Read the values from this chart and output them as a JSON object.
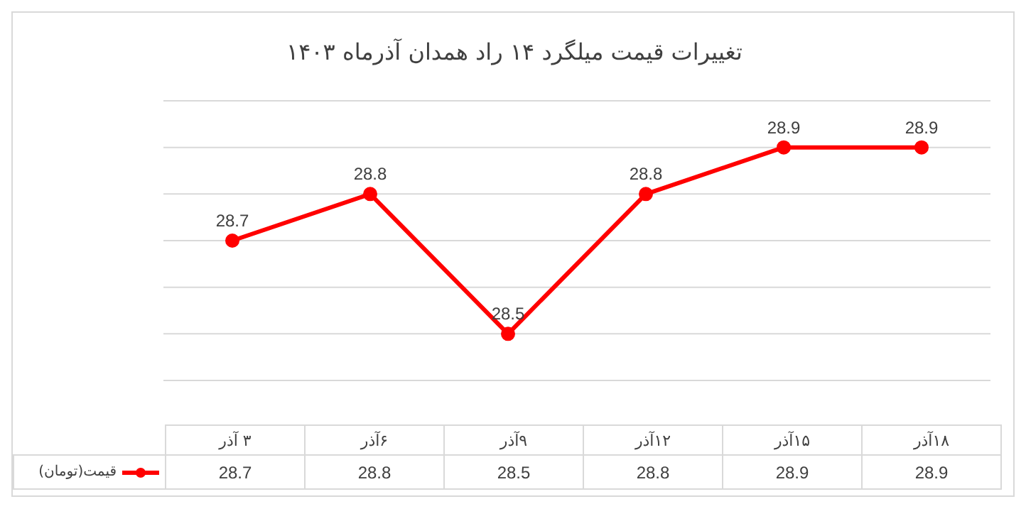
{
  "chart_data": {
    "type": "line",
    "title": "تغییرات قیمت میلگرد ۱۴ راد همدان آذرماه ۱۴۰۳",
    "categories": [
      "۳ آذر",
      "۶آذر",
      "۹آذر",
      "۱۲آذر",
      "۱۵آذر",
      "۱۸آذر"
    ],
    "series": [
      {
        "name": "قیمت(تومان)",
        "color": "#ff0000",
        "values": [
          28.7,
          28.8,
          28.5,
          28.8,
          28.9,
          28.9
        ],
        "value_labels": [
          "28.7",
          "28.8",
          "28.5",
          "28.8",
          "28.9",
          "28.9"
        ]
      }
    ],
    "ylim": [
      28.4,
      29.0
    ],
    "yticks": [
      {
        "value": 28.4,
        "label": null
      },
      {
        "value": 28.5,
        "label": null
      },
      {
        "value": 28.6,
        "label": null
      },
      {
        "value": 28.7,
        "label": null
      },
      {
        "value": 28.8,
        "label": null
      },
      {
        "value": 28.9,
        "label": null
      },
      {
        "value": 29.0,
        "label": null
      }
    ],
    "tick_labels": "x",
    "grid": "y",
    "legend": "bottom left",
    "marker": "circle",
    "line_style": "solid",
    "data_labels": true
  }
}
